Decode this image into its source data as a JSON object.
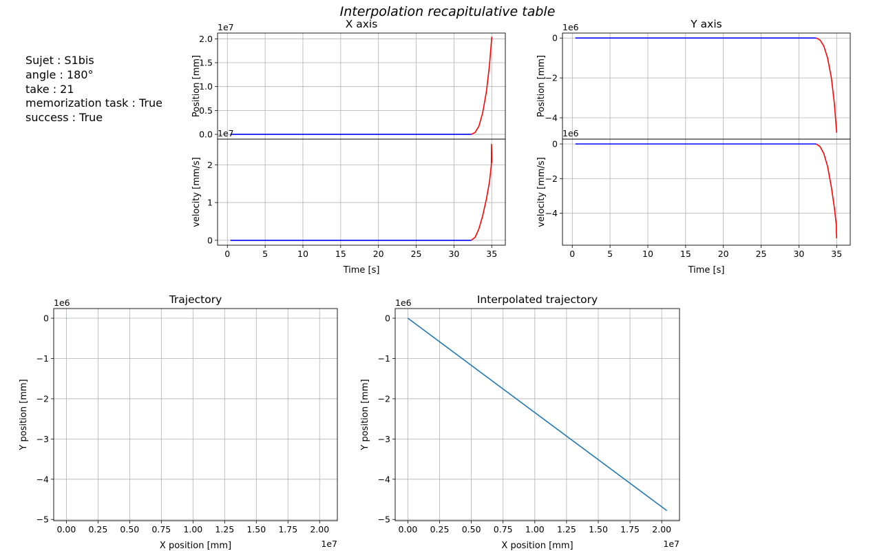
{
  "figure": {
    "suptitle": "Interpolation recapitulative table",
    "info_lines": [
      "Sujet : S1bis",
      "angle : 180°",
      "take : 21",
      "memorization task : True",
      "success : True"
    ]
  },
  "chart_data": [
    {
      "id": "x-position",
      "type": "line",
      "title": "X axis",
      "xlabel": "",
      "ylabel": "Position [mm]",
      "offset_text": "1e7",
      "xlim": [
        -1.3,
        36.8
      ],
      "ylim": [
        -0.1,
        2.12
      ],
      "xticks": [],
      "yticks": [
        0.0,
        0.5,
        1.0,
        1.5,
        2.0
      ],
      "ytick_labels": [
        "0.0",
        "0.5",
        "1.0",
        "1.5",
        "2.0"
      ],
      "grid": true,
      "series": [
        {
          "color": "#0000ff",
          "x": [
            0.4,
            32.3
          ],
          "y": [
            0,
            0
          ]
        },
        {
          "color": "#ff0000",
          "x": [
            32.3,
            32.8,
            33.3,
            33.8,
            34.3,
            34.7,
            35.0
          ],
          "y": [
            0,
            0.04,
            0.17,
            0.45,
            0.9,
            1.45,
            2.04
          ]
        }
      ]
    },
    {
      "id": "x-velocity",
      "type": "line",
      "title": "",
      "xlabel": "Time [s]",
      "ylabel": "velocity [mm/s]",
      "offset_text": "1e7",
      "xlim": [
        -1.3,
        36.8
      ],
      "ylim": [
        -0.13,
        2.68
      ],
      "xticks": [
        0,
        5,
        10,
        15,
        20,
        25,
        30,
        35
      ],
      "xtick_labels": [
        "0",
        "5",
        "10",
        "15",
        "20",
        "25",
        "30",
        "35"
      ],
      "yticks": [
        0,
        1,
        2
      ],
      "ytick_labels": [
        "0",
        "1",
        "2"
      ],
      "grid": true,
      "series": [
        {
          "color": "#0000ff",
          "x": [
            0.4,
            32.3
          ],
          "y": [
            0,
            0
          ]
        },
        {
          "color": "#ff0000",
          "x": [
            32.3,
            32.8,
            33.3,
            33.8,
            34.3,
            34.7,
            34.95,
            34.97,
            35.0,
            35.0
          ],
          "y": [
            0,
            0.08,
            0.3,
            0.65,
            1.1,
            1.55,
            2.0,
            2.55,
            2.2,
            2.05
          ]
        }
      ]
    },
    {
      "id": "y-position",
      "type": "line",
      "title": "Y axis",
      "xlabel": "",
      "ylabel": "Position [mm]",
      "offset_text": "1e6",
      "xlim": [
        -1.3,
        36.8
      ],
      "ylim": [
        -5.07,
        0.25
      ],
      "xticks": [],
      "yticks": [
        0,
        -2,
        -4
      ],
      "ytick_labels": [
        "0",
        "−2",
        "−4"
      ],
      "grid": true,
      "series": [
        {
          "color": "#0000ff",
          "x": [
            0.4,
            32.3
          ],
          "y": [
            0,
            0
          ]
        },
        {
          "color": "#ff0000",
          "x": [
            32.3,
            32.8,
            33.3,
            33.8,
            34.3,
            34.7,
            35.0
          ],
          "y": [
            0,
            -0.1,
            -0.4,
            -1.0,
            -2.0,
            -3.3,
            -4.75
          ]
        }
      ]
    },
    {
      "id": "y-velocity",
      "type": "line",
      "title": "",
      "xlabel": "Time [s]",
      "ylabel": "velocity [mm/s]",
      "offset_text": "1e6",
      "xlim": [
        -1.3,
        36.8
      ],
      "ylim": [
        -5.85,
        0.28
      ],
      "xticks": [
        0,
        5,
        10,
        15,
        20,
        25,
        30,
        35
      ],
      "xtick_labels": [
        "0",
        "5",
        "10",
        "15",
        "20",
        "25",
        "30",
        "35"
      ],
      "yticks": [
        0,
        -2,
        -4
      ],
      "ytick_labels": [
        "0",
        "−2",
        "−4"
      ],
      "grid": true,
      "series": [
        {
          "color": "#0000ff",
          "x": [
            0.4,
            32.3
          ],
          "y": [
            0,
            0
          ]
        },
        {
          "color": "#ff0000",
          "x": [
            32.3,
            32.8,
            33.3,
            33.8,
            34.3,
            34.7,
            34.95,
            34.97,
            35.0
          ],
          "y": [
            0,
            -0.15,
            -0.55,
            -1.3,
            -2.5,
            -3.7,
            -4.65,
            -5.1,
            -5.45
          ]
        }
      ]
    },
    {
      "id": "trajectory",
      "type": "line",
      "title": "Trajectory",
      "xlabel": "X position [mm]",
      "ylabel": "Y position [mm]",
      "x_offset_text": "1e7",
      "y_offset_text": "1e6",
      "xlim": [
        -0.1,
        2.14
      ],
      "ylim": [
        -5.03,
        0.24
      ],
      "xticks": [
        0.0,
        0.25,
        0.5,
        0.75,
        1.0,
        1.25,
        1.5,
        1.75,
        2.0
      ],
      "xtick_labels": [
        "0.00",
        "0.25",
        "0.50",
        "0.75",
        "1.00",
        "1.25",
        "1.50",
        "1.75",
        "2.00"
      ],
      "yticks": [
        0,
        -1,
        -2,
        -3,
        -4,
        -5
      ],
      "ytick_labels": [
        "0",
        "−1",
        "−2",
        "−3",
        "−4",
        "−5"
      ],
      "grid": true,
      "series": [
        {
          "color": "#1f77b4",
          "x": [
            0.0,
            0.0
          ],
          "y": [
            0.0,
            -0.01
          ]
        }
      ]
    },
    {
      "id": "interpolated-trajectory",
      "type": "line",
      "title": "Interpolated trajectory",
      "xlabel": "X position [mm]",
      "ylabel": "Y position [mm]",
      "x_offset_text": "1e7",
      "y_offset_text": "1e6",
      "xlim": [
        -0.1,
        2.14
      ],
      "ylim": [
        -5.03,
        0.24
      ],
      "xticks": [
        0.0,
        0.25,
        0.5,
        0.75,
        1.0,
        1.25,
        1.5,
        1.75,
        2.0
      ],
      "xtick_labels": [
        "0.00",
        "0.25",
        "0.50",
        "0.75",
        "1.00",
        "1.25",
        "1.50",
        "1.75",
        "2.00"
      ],
      "yticks": [
        0,
        -1,
        -2,
        -3,
        -4,
        -5
      ],
      "ytick_labels": [
        "0",
        "−1",
        "−2",
        "−3",
        "−4",
        "−5"
      ],
      "grid": true,
      "series": [
        {
          "color": "#1f77b4",
          "x": [
            0.0,
            2.04
          ],
          "y": [
            0.0,
            -4.78
          ]
        }
      ]
    }
  ]
}
